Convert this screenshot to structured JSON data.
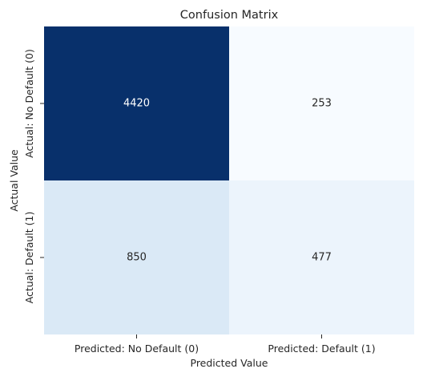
{
  "chart_data": {
    "type": "heatmap",
    "title": "Confusion Matrix",
    "xlabel": "Predicted Value",
    "ylabel": "Actual Value",
    "x_categories": [
      "Predicted: No Default (0)",
      "Predicted: Default (1)"
    ],
    "y_categories": [
      "Actual: No Default (0)",
      "Actual: Default (1)"
    ],
    "values": [
      [
        4420,
        253
      ],
      [
        850,
        477
      ]
    ],
    "colormap": "Blues",
    "color_low": "#f7fbff",
    "color_high": "#08306b",
    "colorbar": false
  }
}
